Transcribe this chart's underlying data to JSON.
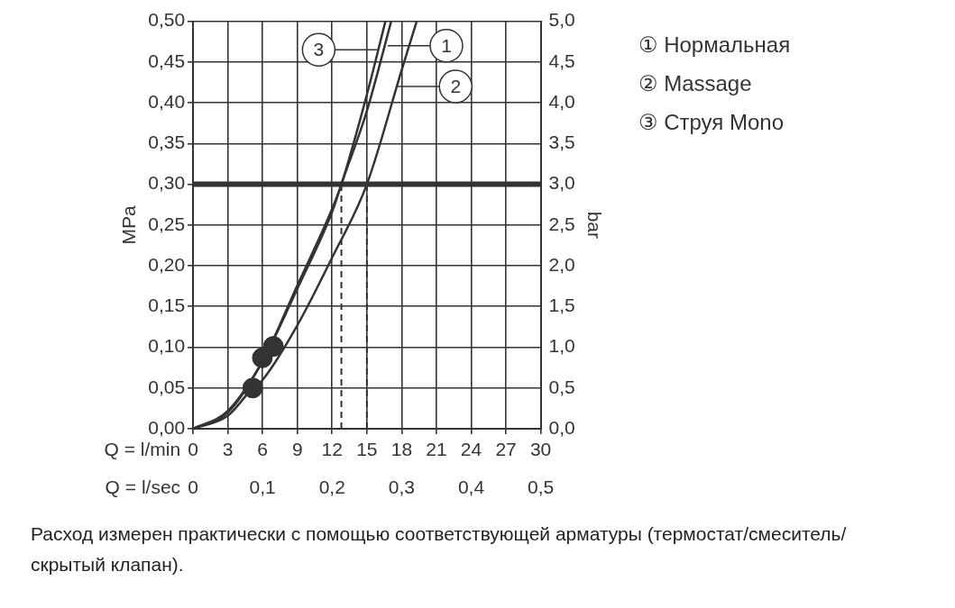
{
  "chart_data": {
    "type": "line",
    "xlabel": "Q = l/min",
    "x2label": "Q = l/sec",
    "ylabel": "MPa",
    "y2label": "bar",
    "xlim": [
      0,
      30
    ],
    "xticks": [
      0,
      3,
      6,
      9,
      12,
      15,
      18,
      21,
      24,
      27,
      30
    ],
    "x2lim": [
      0,
      0.5
    ],
    "x2ticks": [
      0,
      {
        "value": 0.1,
        "label": "0,1"
      },
      {
        "value": 0.2,
        "label": "0,2"
      },
      {
        "value": 0.3,
        "label": "0,3"
      },
      {
        "value": 0.4,
        "label": "0,4"
      },
      {
        "value": 0.5,
        "label": "0,5"
      }
    ],
    "ylim": [
      0,
      0.5
    ],
    "yticks": [
      {
        "value": 0,
        "label": "0,00"
      },
      {
        "value": 0.05,
        "label": "0,05"
      },
      {
        "value": 0.1,
        "label": "0,10"
      },
      {
        "value": 0.15,
        "label": "0,15"
      },
      {
        "value": 0.2,
        "label": "0,20"
      },
      {
        "value": 0.25,
        "label": "0,25"
      },
      {
        "value": 0.3,
        "label": "0,30"
      },
      {
        "value": 0.35,
        "label": "0,35"
      },
      {
        "value": 0.4,
        "label": "0,40"
      },
      {
        "value": 0.45,
        "label": "0,45"
      },
      {
        "value": 0.5,
        "label": "0,50"
      }
    ],
    "y2lim": [
      0,
      5
    ],
    "y2ticks": [
      {
        "value": 0,
        "label": "0,0"
      },
      {
        "value": 0.5,
        "label": "0,5"
      },
      {
        "value": 1,
        "label": "1,0"
      },
      {
        "value": 1.5,
        "label": "1,5"
      },
      {
        "value": 2,
        "label": "2,0"
      },
      {
        "value": 2.5,
        "label": "2,5"
      },
      {
        "value": 3,
        "label": "3,0"
      },
      {
        "value": 3.5,
        "label": "3,5"
      },
      {
        "value": 4,
        "label": "4,0"
      },
      {
        "value": 4.5,
        "label": "4,5"
      },
      {
        "value": 5,
        "label": "5,0"
      }
    ],
    "series": [
      {
        "name": "① Нормальная",
        "color": "#333333",
        "x": [
          0,
          3,
          6,
          9,
          12,
          12.8,
          15,
          17.1
        ],
        "values": [
          0,
          0.022,
          0.083,
          0.172,
          0.266,
          0.3,
          0.39,
          0.5
        ]
      },
      {
        "name": "② Massage",
        "color": "#333333",
        "x": [
          0,
          3,
          5.15,
          6,
          9,
          12,
          15,
          18,
          19.3
        ],
        "values": [
          0,
          0.016,
          0.05,
          0.06,
          0.127,
          0.21,
          0.3,
          0.44,
          0.5
        ]
      },
      {
        "name": "③ Струя Mono",
        "color": "#333333",
        "x": [
          0,
          3,
          6,
          9,
          12,
          12.8,
          15,
          16.6
        ],
        "values": [
          0,
          0.02,
          0.083,
          0.176,
          0.27,
          0.3,
          0.41,
          0.5
        ]
      },
      {
        "type": "scatter",
        "color": "#333333",
        "marker": "circle",
        "x": [
          5.15,
          5.98,
          6.93
        ],
        "values": [
          0.05,
          0.087,
          0.101
        ]
      }
    ],
    "marker": "none",
    "line_style": "solid",
    "grid": true,
    "legend": "right",
    "ref_lines": [
      {
        "axis": "y",
        "value": 0.3,
        "color": "#333333",
        "line_style": "solid"
      },
      {
        "axis": "x",
        "value": 12.8,
        "color": "#333333",
        "line_style": "dashed"
      },
      {
        "axis": "x",
        "value": 15,
        "color": "#333333",
        "line_style": "dashed"
      }
    ],
    "annotations": [
      {
        "text": "3",
        "x": 15.9,
        "y": 0.465
      },
      {
        "text": "1",
        "x": 16.8,
        "y": 0.47
      },
      {
        "text": "2",
        "x": 17.6,
        "y": 0.42
      },
      "Расход измерен практически с помощью соответствующей арматуры (термостат/смеситель/скрытый клапан)."
    ]
  }
}
